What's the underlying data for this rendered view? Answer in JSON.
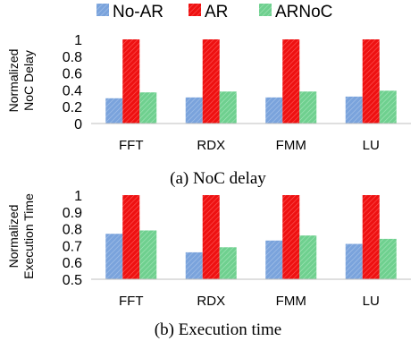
{
  "legend": {
    "position": "top",
    "items": [
      {
        "label": "No-AR",
        "color": "#7aa3dc"
      },
      {
        "label": "AR",
        "color": "#ee1111"
      },
      {
        "label": "ARNoC",
        "color": "#6fd08f"
      }
    ]
  },
  "chart_data": [
    {
      "type": "bar",
      "caption": "(a) NoC delay",
      "ylabel_line1": "Normalized",
      "ylabel_line2": "NoC Delay",
      "ylim": [
        0,
        1
      ],
      "yticks": [
        "0",
        "0.2",
        "0.4",
        "0.6",
        "0.8",
        "1"
      ],
      "grid": false,
      "categories": [
        "FFT",
        "RDX",
        "FMM",
        "LU"
      ],
      "series": [
        {
          "name": "No-AR",
          "color": "#7aa3dc",
          "values": [
            0.3,
            0.31,
            0.31,
            0.32
          ]
        },
        {
          "name": "AR",
          "color": "#ee1111",
          "values": [
            1.0,
            1.0,
            1.0,
            1.0
          ]
        },
        {
          "name": "ARNoC",
          "color": "#6fd08f",
          "values": [
            0.37,
            0.38,
            0.38,
            0.39
          ]
        }
      ]
    },
    {
      "type": "bar",
      "caption": "(b) Execution time",
      "ylabel_line1": "Normalized",
      "ylabel_line2": "Execution Time",
      "ylim": [
        0.5,
        1
      ],
      "yticks": [
        "0.5",
        "0.6",
        "0.7",
        "0.8",
        "0.9",
        "1"
      ],
      "grid": false,
      "categories": [
        "FFT",
        "RDX",
        "FMM",
        "LU"
      ],
      "series": [
        {
          "name": "No-AR",
          "color": "#7aa3dc",
          "values": [
            0.77,
            0.66,
            0.73,
            0.71
          ]
        },
        {
          "name": "AR",
          "color": "#ee1111",
          "values": [
            1.0,
            1.0,
            1.0,
            1.0
          ]
        },
        {
          "name": "ARNoC",
          "color": "#6fd08f",
          "values": [
            0.79,
            0.69,
            0.76,
            0.74
          ]
        }
      ]
    }
  ]
}
